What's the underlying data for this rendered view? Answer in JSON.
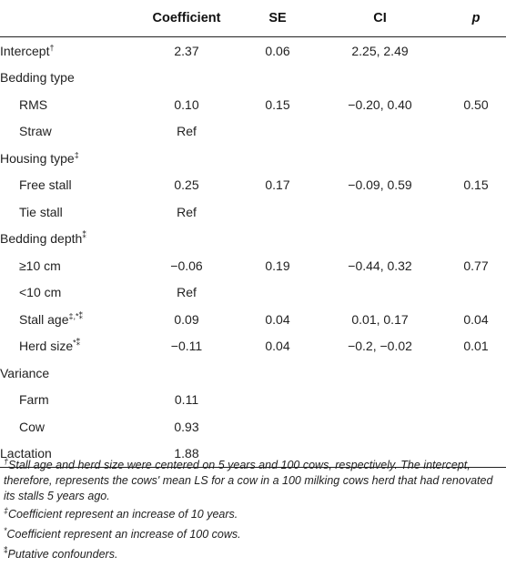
{
  "table": {
    "headers": [
      "",
      "Coefficient",
      "SE",
      "CI",
      "p"
    ],
    "rows": [
      {
        "label": "Intercept",
        "mark": "†",
        "indent": false,
        "coefficient": "2.37",
        "se": "0.06",
        "ci": "2.25, 2.49",
        "p": ""
      },
      {
        "label": "Bedding type",
        "mark": "",
        "indent": false,
        "coefficient": "",
        "se": "",
        "ci": "",
        "p": ""
      },
      {
        "label": "RMS",
        "mark": "",
        "indent": true,
        "coefficient": "0.10",
        "se": "0.15",
        "ci": "−0.20, 0.40",
        "p": "0.50"
      },
      {
        "label": "Straw",
        "mark": "",
        "indent": true,
        "coefficient": "Ref",
        "se": "",
        "ci": "",
        "p": ""
      },
      {
        "label": "Housing type",
        "mark": "‡",
        "indent": false,
        "coefficient": "",
        "se": "",
        "ci": "",
        "p": ""
      },
      {
        "label": "Free stall",
        "mark": "",
        "indent": true,
        "coefficient": "0.25",
        "se": "0.17",
        "ci": "−0.09, 0.59",
        "p": "0.15"
      },
      {
        "label": "Tie stall",
        "mark": "",
        "indent": true,
        "coefficient": "Ref",
        "se": "",
        "ci": "",
        "p": ""
      },
      {
        "label": "Bedding depth",
        "mark": "⁑",
        "indent": false,
        "coefficient": "",
        "se": "",
        "ci": "",
        "p": ""
      },
      {
        "label": "≥10 cm",
        "mark": "",
        "indent": true,
        "coefficient": "−0.06",
        "se": "0.19",
        "ci": "−0.44, 0.32",
        "p": "0.77"
      },
      {
        "label": "<10 cm",
        "mark": "",
        "indent": true,
        "coefficient": "Ref",
        "se": "",
        "ci": "",
        "p": ""
      },
      {
        "label": "Stall age",
        "mark": "‡,*⁑",
        "indent": true,
        "coefficient": "0.09",
        "se": "0.04",
        "ci": "0.01, 0.17",
        "p": "0.04"
      },
      {
        "label": "Herd size",
        "mark": "*⁑",
        "indent": true,
        "coefficient": "−0.11",
        "se": "0.04",
        "ci": "−0.2, −0.02",
        "p": "0.01"
      },
      {
        "label": "Variance",
        "mark": "",
        "indent": false,
        "coefficient": "",
        "se": "",
        "ci": "",
        "p": ""
      },
      {
        "label": "Farm",
        "mark": "",
        "indent": true,
        "coefficient": "0.11",
        "se": "",
        "ci": "",
        "p": ""
      },
      {
        "label": "Cow",
        "mark": "",
        "indent": true,
        "coefficient": "0.93",
        "se": "",
        "ci": "",
        "p": ""
      },
      {
        "label": "Lactation",
        "mark": "",
        "indent": false,
        "coefficient": "1.88",
        "se": "",
        "ci": "",
        "p": ""
      }
    ]
  },
  "footnotes": [
    {
      "mark": "†",
      "text": "Stall age and herd size were centered on 5 years and 100 cows, respectively. The intercept, therefore, represents the cows' mean LS for a cow in a 100 milking cows herd that had renovated its stalls 5 years ago."
    },
    {
      "mark": "‡",
      "text": "Coefficient represent an increase of 10 years."
    },
    {
      "mark": "*",
      "text": "Coefficient represent an increase of 100 cows."
    },
    {
      "mark": "⁑",
      "text": "Putative confounders."
    }
  ]
}
